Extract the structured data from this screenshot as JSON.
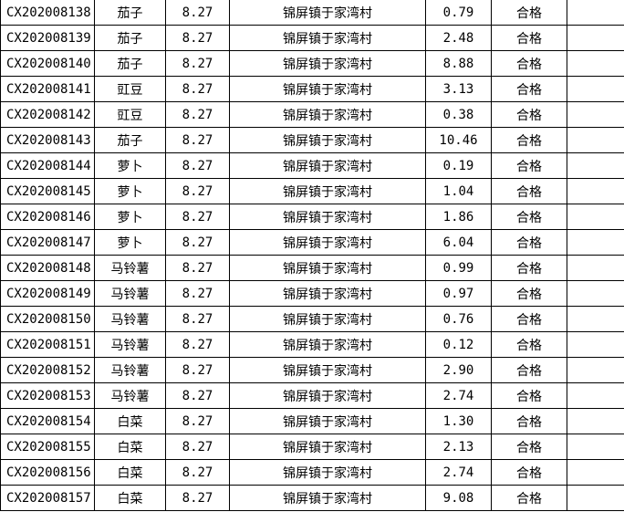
{
  "rows": [
    {
      "id": "CX202008138",
      "name": "茄子",
      "date": "8.27",
      "place": "锦屏镇于家湾村",
      "value": "0.79",
      "result": "合格"
    },
    {
      "id": "CX202008139",
      "name": "茄子",
      "date": "8.27",
      "place": "锦屏镇于家湾村",
      "value": "2.48",
      "result": "合格"
    },
    {
      "id": "CX202008140",
      "name": "茄子",
      "date": "8.27",
      "place": "锦屏镇于家湾村",
      "value": "8.88",
      "result": "合格"
    },
    {
      "id": "CX202008141",
      "name": "豇豆",
      "date": "8.27",
      "place": "锦屏镇于家湾村",
      "value": "3.13",
      "result": "合格"
    },
    {
      "id": "CX202008142",
      "name": "豇豆",
      "date": "8.27",
      "place": "锦屏镇于家湾村",
      "value": "0.38",
      "result": "合格"
    },
    {
      "id": "CX202008143",
      "name": "茄子",
      "date": "8.27",
      "place": "锦屏镇于家湾村",
      "value": "10.46",
      "result": "合格"
    },
    {
      "id": "CX202008144",
      "name": "萝卜",
      "date": "8.27",
      "place": "锦屏镇于家湾村",
      "value": "0.19",
      "result": "合格"
    },
    {
      "id": "CX202008145",
      "name": "萝卜",
      "date": "8.27",
      "place": "锦屏镇于家湾村",
      "value": "1.04",
      "result": "合格"
    },
    {
      "id": "CX202008146",
      "name": "萝卜",
      "date": "8.27",
      "place": "锦屏镇于家湾村",
      "value": "1.86",
      "result": "合格"
    },
    {
      "id": "CX202008147",
      "name": "萝卜",
      "date": "8.27",
      "place": "锦屏镇于家湾村",
      "value": "6.04",
      "result": "合格"
    },
    {
      "id": "CX202008148",
      "name": "马铃薯",
      "date": "8.27",
      "place": "锦屏镇于家湾村",
      "value": "0.99",
      "result": "合格"
    },
    {
      "id": "CX202008149",
      "name": "马铃薯",
      "date": "8.27",
      "place": "锦屏镇于家湾村",
      "value": "0.97",
      "result": "合格"
    },
    {
      "id": "CX202008150",
      "name": "马铃薯",
      "date": "8.27",
      "place": "锦屏镇于家湾村",
      "value": "0.76",
      "result": "合格"
    },
    {
      "id": "CX202008151",
      "name": "马铃薯",
      "date": "8.27",
      "place": "锦屏镇于家湾村",
      "value": "0.12",
      "result": "合格"
    },
    {
      "id": "CX202008152",
      "name": "马铃薯",
      "date": "8.27",
      "place": "锦屏镇于家湾村",
      "value": "2.90",
      "result": "合格"
    },
    {
      "id": "CX202008153",
      "name": "马铃薯",
      "date": "8.27",
      "place": "锦屏镇于家湾村",
      "value": "2.74",
      "result": "合格"
    },
    {
      "id": "CX202008154",
      "name": "白菜",
      "date": "8.27",
      "place": "锦屏镇于家湾村",
      "value": "1.30",
      "result": "合格"
    },
    {
      "id": "CX202008155",
      "name": "白菜",
      "date": "8.27",
      "place": "锦屏镇于家湾村",
      "value": "2.13",
      "result": "合格"
    },
    {
      "id": "CX202008156",
      "name": "白菜",
      "date": "8.27",
      "place": "锦屏镇于家湾村",
      "value": "2.74",
      "result": "合格"
    },
    {
      "id": "CX202008157",
      "name": "白菜",
      "date": "8.27",
      "place": "锦屏镇于家湾村",
      "value": "9.08",
      "result": "合格"
    }
  ]
}
